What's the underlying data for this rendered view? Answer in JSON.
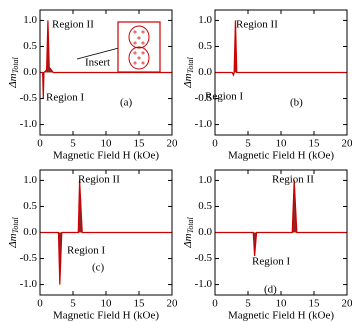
{
  "chart_data": [
    {
      "type": "line",
      "xlabel": "Magnetic Field H (kOe)",
      "ylabel": "Δm",
      "ylabel_subscript": "Total",
      "xlim": [
        0,
        20
      ],
      "xticks": [
        0,
        5,
        10,
        15,
        20
      ],
      "ylim": [
        -1.2,
        1.2
      ],
      "yticks": [
        {
          "value": -1,
          "label": "-1.0"
        },
        {
          "value": -0.5,
          "label": "-0.5"
        },
        {
          "value": 0,
          "label": "0.0"
        },
        {
          "value": 0.5,
          "label": "0.5"
        },
        {
          "value": 1,
          "label": "1.0"
        }
      ],
      "series": [
        {
          "color": "#cc0000",
          "x": [
            0,
            0.4,
            0.5,
            0.6,
            1.0,
            1.2,
            1.4,
            1.9,
            2.0,
            20
          ],
          "values": [
            0,
            0,
            -0.5,
            0,
            0.05,
            1.0,
            0.1,
            0.02,
            0,
            0
          ]
        }
      ],
      "annotations": [
        "Region II",
        "Region I",
        "Insert",
        "(a)"
      ]
    },
    {
      "type": "line",
      "xlabel": "Magnetic Field H (kOe)",
      "ylabel": "Δm",
      "ylabel_subscript": "Total",
      "xlim": [
        0,
        20
      ],
      "xticks": [
        0,
        5,
        10,
        15,
        20
      ],
      "ylim": [
        -1.2,
        1.2
      ],
      "yticks": [
        {
          "value": -1,
          "label": "-1.0"
        },
        {
          "value": -0.5,
          "label": "-0.5"
        },
        {
          "value": 0,
          "label": "0.0"
        },
        {
          "value": 0.5,
          "label": "0.5"
        },
        {
          "value": 1,
          "label": "1.0"
        }
      ],
      "series": [
        {
          "color": "#cc0000",
          "x": [
            0,
            2.6,
            2.8,
            2.9,
            3.1,
            3.3,
            20
          ],
          "values": [
            0,
            0,
            -0.05,
            0,
            1.0,
            0,
            0
          ]
        }
      ],
      "annotations": [
        "Region II",
        "Region I",
        "(b)"
      ]
    },
    {
      "type": "line",
      "xlabel": "Magnetic Field H (kOe)",
      "ylabel": "Δm",
      "ylabel_subscript": "Total",
      "xlim": [
        0,
        20
      ],
      "xticks": [
        0,
        5,
        10,
        15,
        20
      ],
      "ylim": [
        -1.2,
        1.2
      ],
      "yticks": [
        {
          "value": -1,
          "label": "-1.0"
        },
        {
          "value": -0.5,
          "label": "-0.5"
        },
        {
          "value": 0,
          "label": "0.0"
        },
        {
          "value": 0.5,
          "label": "0.5"
        },
        {
          "value": 1,
          "label": "1.0"
        }
      ],
      "series": [
        {
          "color": "#cc0000",
          "x": [
            0,
            2.8,
            3.0,
            3.3,
            5.8,
            6.0,
            6.4,
            20
          ],
          "values": [
            0,
            0,
            -1.0,
            0,
            0,
            1.0,
            0,
            0
          ]
        }
      ],
      "annotations": [
        "Region II",
        "Region I",
        "(c)"
      ]
    },
    {
      "type": "line",
      "xlabel": "Magnetic Field H (kOe)",
      "ylabel": "Δm",
      "ylabel_subscript": "Total",
      "xlim": [
        0,
        20
      ],
      "xticks": [
        0,
        5,
        10,
        15,
        20
      ],
      "ylim": [
        -1.2,
        1.2
      ],
      "yticks": [
        {
          "value": -1,
          "label": "-1.0"
        },
        {
          "value": -0.5,
          "label": "-0.5"
        },
        {
          "value": 0,
          "label": "0.0"
        },
        {
          "value": 0.5,
          "label": "0.5"
        },
        {
          "value": 1,
          "label": "1.0"
        }
      ],
      "series": [
        {
          "color": "#cc0000",
          "x": [
            0,
            5.8,
            6.0,
            6.3,
            11.7,
            12.0,
            12.4,
            20
          ],
          "values": [
            0,
            0,
            -0.45,
            0,
            0,
            1.0,
            0,
            0
          ]
        }
      ],
      "annotations": [
        "Region II",
        "Region I",
        "(d)"
      ]
    }
  ]
}
